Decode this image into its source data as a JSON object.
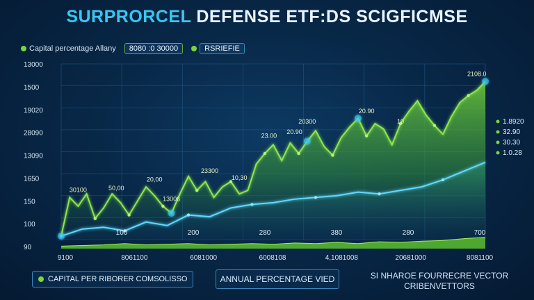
{
  "title_part1": "SURPRORCEL",
  "title_part2": "DEFENSE ETF:DS SCIGFICMSE",
  "legend": {
    "label": "Capital percentage Allany",
    "box1": "8080 :0 30000",
    "box2": "RSRIEFIE"
  },
  "colors": {
    "background": "#082848",
    "green": "#7ed43a",
    "blue": "#4fd1f5",
    "grid": "#1f5a8a"
  },
  "footer": {
    "left_label": "CAPITAL PER RIBORER COMSOLISSO",
    "middle_label": "ANNUAL PERCENTAGE VIED",
    "right_label": "SI NHAROE FOURRECRE VECTOR CRIBENVETTORS"
  },
  "chart_data": {
    "type": "area",
    "ylabels": [
      "90",
      "100",
      "150",
      "1650",
      "13090",
      "28090",
      "19020",
      "1500",
      "13000"
    ],
    "xticks": [
      "100",
      "200",
      "280",
      "380",
      "280",
      "700"
    ],
    "bottom_labels": [
      "9100",
      "8061100",
      "6081000",
      "6008108",
      "4,1081008",
      "20681000",
      "8081100"
    ],
    "right_labels": [
      "1.8920",
      "32.90",
      "30.30",
      "1.0.28"
    ],
    "annotations": [
      "30100",
      "50,00",
      "20,00",
      "13006",
      "23300",
      "10,30",
      "23.00",
      "20.90",
      "20300",
      "20.90",
      "10",
      "2108.0"
    ],
    "grid": true,
    "series": [
      {
        "x": [
          0,
          2,
          4,
          6,
          8,
          10,
          12,
          14,
          16,
          18,
          20,
          22,
          24,
          26,
          28,
          30,
          32,
          34,
          36,
          38,
          40,
          42,
          44,
          46,
          48,
          50,
          52,
          54,
          56,
          58,
          60,
          62,
          64,
          66,
          68,
          70,
          72,
          74,
          76,
          78,
          80,
          82,
          84,
          86,
          88,
          90,
          92,
          94,
          96,
          98,
          100
        ],
        "values": [
          2,
          24,
          19,
          26,
          12,
          18,
          26,
          21,
          14,
          22,
          30,
          25,
          19,
          15,
          26,
          36,
          28,
          33,
          24,
          30,
          33,
          26,
          28,
          43,
          49,
          54,
          45,
          55,
          49,
          56,
          62,
          53,
          48,
          58,
          64,
          69,
          59,
          66,
          63,
          54,
          66,
          73,
          79,
          71,
          65,
          60,
          70,
          78,
          82,
          85,
          90
        ]
      },
      {
        "x": [
          0,
          5,
          10,
          15,
          20,
          25,
          30,
          35,
          40,
          45,
          50,
          55,
          60,
          65,
          70,
          75,
          80,
          85,
          90,
          95,
          100
        ],
        "values": [
          2,
          6,
          7,
          5,
          10,
          8,
          14,
          13,
          18,
          20,
          21,
          23,
          24,
          25,
          27,
          26,
          28,
          30,
          34,
          39,
          44
        ]
      },
      {
        "x": [
          0,
          5,
          10,
          15,
          20,
          25,
          30,
          35,
          40,
          45,
          50,
          55,
          60,
          65,
          70,
          75,
          80,
          85,
          90,
          95,
          100
        ],
        "values": [
          2,
          2.5,
          3,
          4,
          3,
          3.5,
          4,
          3,
          3.5,
          4,
          3.5,
          4.5,
          4,
          5,
          4,
          5.5,
          5,
          6,
          6.5,
          8,
          9
        ]
      }
    ]
  }
}
